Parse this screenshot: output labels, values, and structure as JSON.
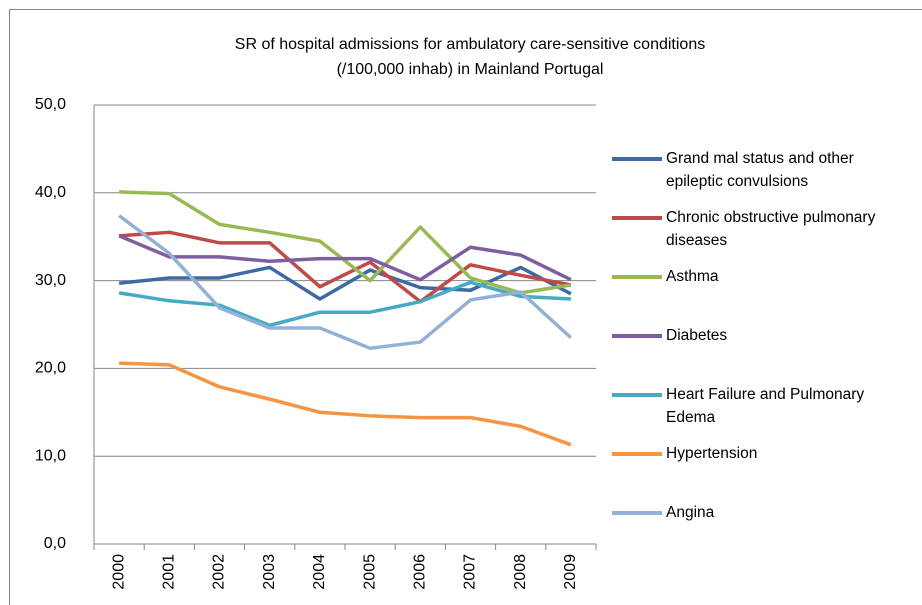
{
  "chart_data": {
    "type": "line",
    "title": "SR of hospital admissions for ambulatory care-sensitive conditions",
    "subtitle": "(/100,000 inhab) in Mainland Portugal",
    "categories": [
      "2000",
      "2001",
      "2002",
      "2003",
      "2004",
      "2005",
      "2006",
      "2007",
      "2008",
      "2009"
    ],
    "ylim": [
      0,
      50
    ],
    "yticks": [
      {
        "value": 0,
        "label": "0,0"
      },
      {
        "value": 10,
        "label": "10,0"
      },
      {
        "value": 20,
        "label": "20,0"
      },
      {
        "value": 30,
        "label": "30,0"
      },
      {
        "value": 40,
        "label": "40,0"
      },
      {
        "value": 50,
        "label": "50,0"
      }
    ],
    "grid": true,
    "legend": "right",
    "series": [
      {
        "name": "Grand mal status and other epileptic convulsions",
        "color": "#3e6aa3",
        "values": [
          29.7,
          30.3,
          30.3,
          31.5,
          27.9,
          31.2,
          29.2,
          28.9,
          31.5,
          28.5
        ]
      },
      {
        "name": "Chronic obstructive pulmonary diseases",
        "color": "#be4b48",
        "values": [
          35.1,
          35.5,
          34.3,
          34.3,
          29.3,
          32.1,
          27.6,
          31.8,
          30.6,
          29.5
        ]
      },
      {
        "name": "Asthma",
        "color": "#98b954",
        "values": [
          40.1,
          39.9,
          36.4,
          35.5,
          34.5,
          30.0,
          36.1,
          30.3,
          28.6,
          29.5
        ]
      },
      {
        "name": "Diabetes",
        "color": "#7d5fa0",
        "values": [
          35.1,
          32.7,
          32.7,
          32.2,
          32.5,
          32.5,
          30.1,
          33.8,
          32.9,
          30.1
        ]
      },
      {
        "name": "Heart Failure and Pulmonary Edema",
        "color": "#46aac4",
        "values": [
          28.6,
          27.7,
          27.2,
          24.9,
          26.4,
          26.4,
          27.6,
          29.8,
          28.2,
          27.9
        ]
      },
      {
        "name": "Hypertension",
        "color": "#f59443",
        "values": [
          20.6,
          20.4,
          17.9,
          16.5,
          15.0,
          14.6,
          14.4,
          14.4,
          13.4,
          11.3
        ]
      },
      {
        "name": "Angina",
        "color": "#93b1d6",
        "values": [
          37.4,
          33.1,
          26.9,
          24.6,
          24.6,
          22.3,
          23.0,
          27.8,
          28.7,
          23.5
        ]
      }
    ]
  }
}
